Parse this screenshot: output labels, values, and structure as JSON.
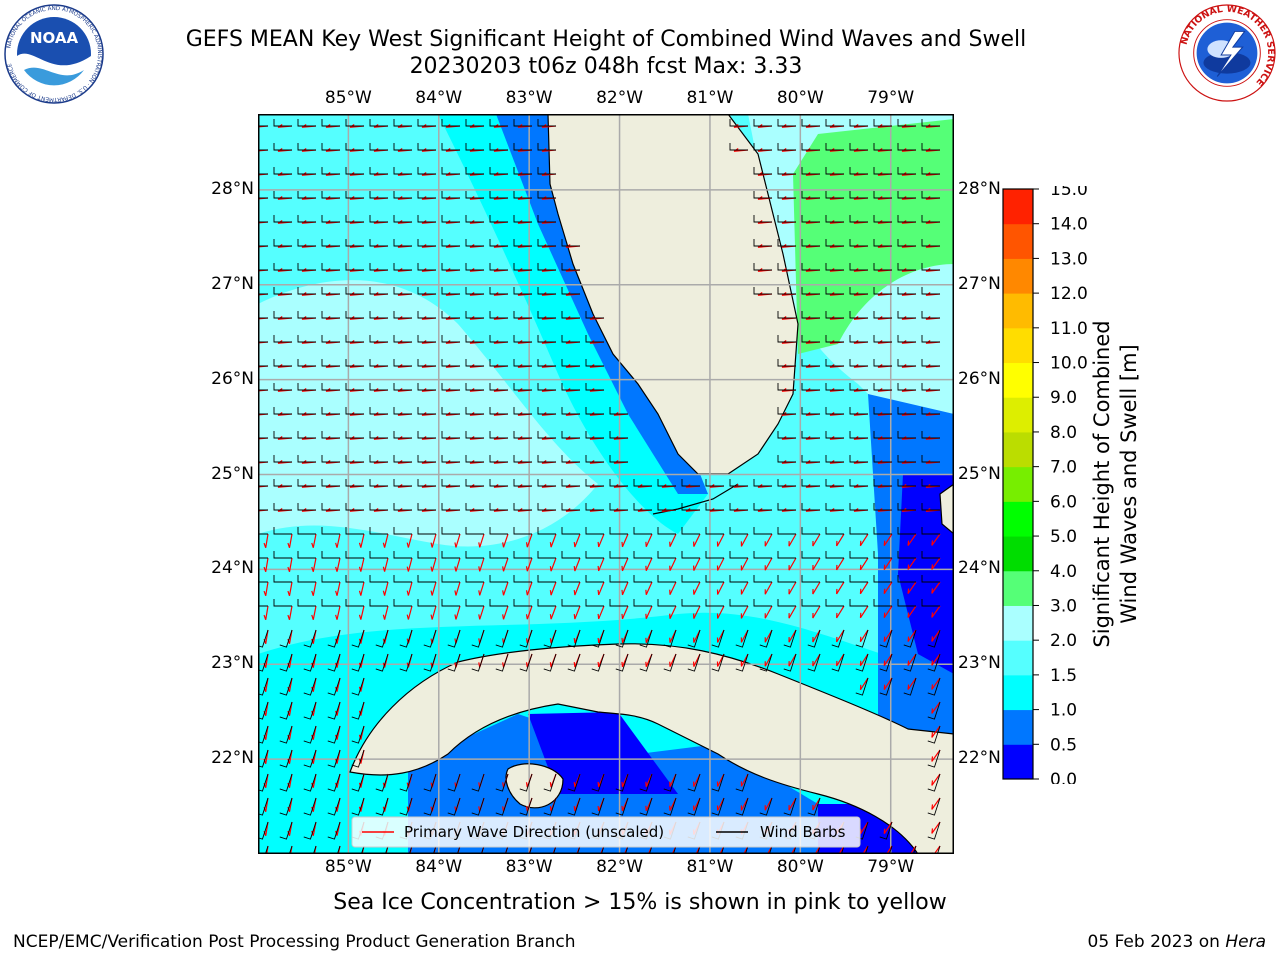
{
  "header": {
    "title_line1": "GEFS MEAN Key West Significant Height of Combined Wind Waves and Swell",
    "title_line2": "20230203 t06z 048h fcst   Max: 3.33"
  },
  "logos": {
    "left": {
      "name": "noaa-logo",
      "text_main": "NOAA",
      "ring_text": "NATIONAL OCEANIC AND ATMOSPHERIC ADMINISTRATION · U.S. DEPARTMENT OF COMMERCE"
    },
    "right": {
      "name": "nws-logo",
      "ring_text": "NATIONAL WEATHER SERVICE"
    }
  },
  "map": {
    "lon_ticks": [
      "85°W",
      "84°W",
      "83°W",
      "82°W",
      "81°W",
      "80°W",
      "79°W"
    ],
    "lat_ticks": [
      "28°N",
      "27°N",
      "26°N",
      "25°N",
      "24°N",
      "23°N",
      "22°N"
    ],
    "lon_range": [
      -86.0,
      -78.3
    ],
    "lat_range": [
      21.0,
      28.8
    ],
    "land_color": "#eeeedd",
    "grid": true,
    "vector_color": "#ff0000",
    "barb_color": "#000000"
  },
  "legend": {
    "items": [
      {
        "label": "Primary Wave Direction (unscaled)",
        "color": "#ff0000"
      },
      {
        "label": "Wind Barbs",
        "color": "#000000"
      }
    ]
  },
  "colorbar": {
    "label_line1": "Significant Height of Combined",
    "label_line2": "Wind Waves and Swell [m]",
    "ticks": [
      "0.0",
      "0.5",
      "1.0",
      "1.5",
      "2.0",
      "3.0",
      "4.0",
      "5.0",
      "6.0",
      "7.0",
      "8.0",
      "9.0",
      "10.0",
      "11.0",
      "12.0",
      "13.0",
      "14.0",
      "15.0"
    ],
    "colors": [
      "#0000ff",
      "#0077ff",
      "#00ffff",
      "#55ffff",
      "#aaffff",
      "#55ff77",
      "#00dd00",
      "#00ff00",
      "#77ee00",
      "#bbdd00",
      "#ddee00",
      "#ffff00",
      "#ffdd00",
      "#ffbb00",
      "#ff8800",
      "#ff5500",
      "#ff2200",
      "#ff0000"
    ]
  },
  "footer": {
    "ice_note": "Sea Ice Concentration > 15% is shown in pink to yellow",
    "left": "NCEP/EMC/Verification Post Processing Product Generation Branch",
    "right_date": "05 Feb 2023 on ",
    "right_host": "Hera"
  }
}
